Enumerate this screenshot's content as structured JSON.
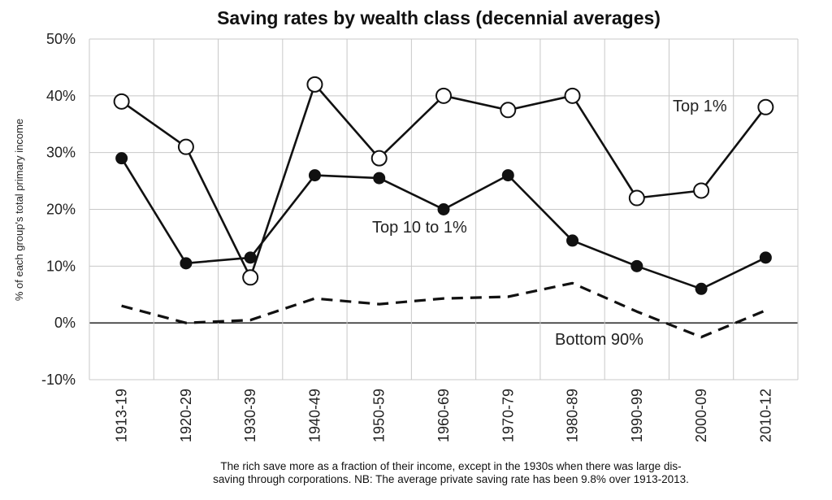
{
  "chart_data": {
    "type": "line",
    "title": "Saving rates by wealth class (decennial averages)",
    "ylabel": "% of each group's total primary income",
    "xlabel": "",
    "categories": [
      "1913-19",
      "1920-29",
      "1930-39",
      "1940-49",
      "1950-59",
      "1960-69",
      "1970-79",
      "1980-89",
      "1990-99",
      "2000-09",
      "2010-12"
    ],
    "ylim": [
      -10,
      50
    ],
    "yticks": [
      -10,
      0,
      10,
      20,
      30,
      40,
      50
    ],
    "ytick_labels": [
      "-10%",
      "0%",
      "10%",
      "20%",
      "30%",
      "40%",
      "50%"
    ],
    "grid": true,
    "series": [
      {
        "name": "Top 1%",
        "style": "open-circle-solid",
        "values": [
          39,
          31,
          8,
          42,
          29,
          40,
          37.5,
          40,
          22,
          23.3,
          38
        ]
      },
      {
        "name": "Top 10 to 1%",
        "style": "filled-circle-solid",
        "values": [
          29,
          10.5,
          11.5,
          26,
          25.5,
          20,
          26,
          14.5,
          10,
          6,
          11.5
        ]
      },
      {
        "name": "Bottom 90%",
        "style": "dashed",
        "values": [
          3,
          0,
          0.5,
          4.3,
          3.3,
          4.3,
          4.6,
          7,
          2,
          -2.5,
          2.2
        ]
      }
    ],
    "caption_lines": [
      "The rich save more as a fraction of their income, except in the 1930s when there was large dis-",
      "saving through corporations. NB: The average private saving rate has been 9.8% over 1913-2013."
    ],
    "colors": {
      "line": "#111111",
      "grid": "#c8c8c8",
      "marker_fill_open": "#ffffff",
      "marker_fill_closed": "#111111"
    }
  }
}
